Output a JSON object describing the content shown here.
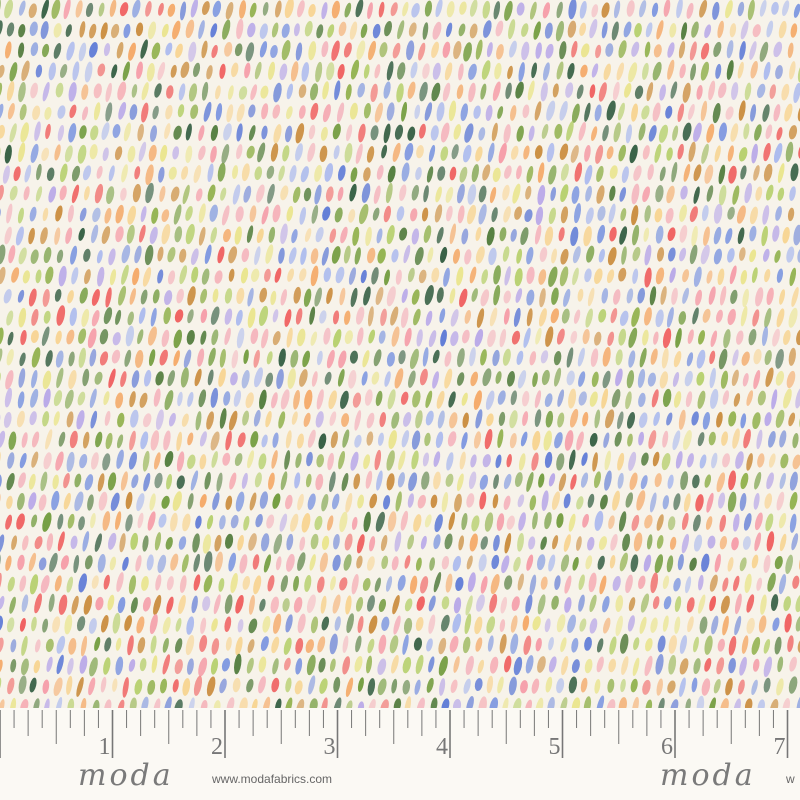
{
  "fabric": {
    "pattern": "watercolor brush-stroke dabs in rows",
    "background_color": "#f7f3ea",
    "palette": [
      "#6f9a3a",
      "#8fb04a",
      "#4f7a3a",
      "#b5cf6a",
      "#7b95e0",
      "#5b78d6",
      "#a9b8ee",
      "#b7a6e8",
      "#f59aa6",
      "#f4b4bd",
      "#ef5a5a",
      "#f4a866",
      "#f7d38f",
      "#e9e48a",
      "#c98a3a",
      "#2f5a3e"
    ]
  },
  "ruler": {
    "numbers": [
      "1",
      "2",
      "3",
      "4",
      "5",
      "6",
      "7"
    ],
    "brand_logo": "moda",
    "url": "www.modafabrics.com",
    "url_cut": "w"
  }
}
